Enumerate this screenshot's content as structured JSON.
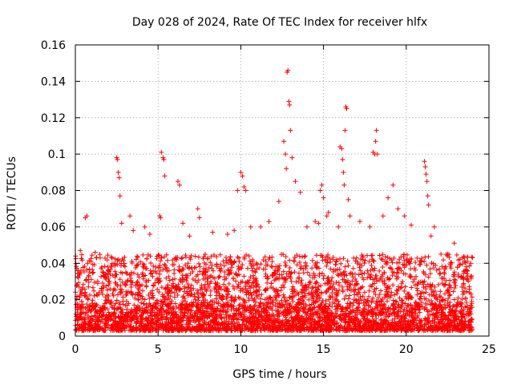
{
  "chart_data": {
    "type": "scatter",
    "title": "Day 028 of 2024, Rate Of TEC Index for receiver hlfx",
    "xlabel": "GPS time / hours",
    "ylabel": "ROTI / TECUs",
    "xlim": [
      0,
      25
    ],
    "ylim": [
      0,
      0.16
    ],
    "x_ticks": [
      0,
      5,
      10,
      15,
      20,
      25
    ],
    "x_tick_labels": [
      "0",
      "5",
      "10",
      "15",
      "20",
      "25"
    ],
    "y_ticks": [
      0,
      0.02,
      0.04,
      0.06,
      0.08,
      0.1,
      0.12,
      0.14,
      0.16
    ],
    "y_tick_labels": [
      "0",
      "0.02",
      "0.04",
      "0.06",
      "0.08",
      "0.1",
      "0.12",
      "0.14",
      "0.16"
    ],
    "grid": true,
    "marker": "+",
    "marker_color": "#ff0000",
    "data_range_hours": [
      0,
      24
    ],
    "background_band": {
      "description": "dense cloud of points spanning the whole day",
      "x": [
        0,
        24
      ],
      "typical_min": 0.003,
      "typical_max": 0.045
    },
    "series": [
      {
        "name": "ROTI",
        "points": [
          [
            0.3,
            0.047
          ],
          [
            0.6,
            0.065
          ],
          [
            0.7,
            0.066
          ],
          [
            1.2,
            0.046
          ],
          [
            1.5,
            0.043
          ],
          [
            2.5,
            0.098
          ],
          [
            2.55,
            0.097
          ],
          [
            2.6,
            0.09
          ],
          [
            2.65,
            0.087
          ],
          [
            2.7,
            0.077
          ],
          [
            2.8,
            0.062
          ],
          [
            3.3,
            0.066
          ],
          [
            3.5,
            0.058
          ],
          [
            4.2,
            0.06
          ],
          [
            4.5,
            0.056
          ],
          [
            5.2,
            0.101
          ],
          [
            5.3,
            0.098
          ],
          [
            5.35,
            0.097
          ],
          [
            5.4,
            0.088
          ],
          [
            5.1,
            0.066
          ],
          [
            5.15,
            0.065
          ],
          [
            6.2,
            0.085
          ],
          [
            6.3,
            0.083
          ],
          [
            6.5,
            0.062
          ],
          [
            6.9,
            0.055
          ],
          [
            7.4,
            0.07
          ],
          [
            7.5,
            0.065
          ],
          [
            8.3,
            0.057
          ],
          [
            9.2,
            0.056
          ],
          [
            9.6,
            0.058
          ],
          [
            9.8,
            0.08
          ],
          [
            10.0,
            0.09
          ],
          [
            10.1,
            0.088
          ],
          [
            10.2,
            0.082
          ],
          [
            10.3,
            0.08
          ],
          [
            10.6,
            0.06
          ],
          [
            11.2,
            0.06
          ],
          [
            11.7,
            0.063
          ],
          [
            12.3,
            0.074
          ],
          [
            12.6,
            0.107
          ],
          [
            12.7,
            0.1
          ],
          [
            12.75,
            0.092
          ],
          [
            12.8,
            0.145
          ],
          [
            12.85,
            0.146
          ],
          [
            12.9,
            0.129
          ],
          [
            12.95,
            0.127
          ],
          [
            13.0,
            0.113
          ],
          [
            13.1,
            0.098
          ],
          [
            13.3,
            0.085
          ],
          [
            13.6,
            0.079
          ],
          [
            14.0,
            0.06
          ],
          [
            14.5,
            0.063
          ],
          [
            14.7,
            0.062
          ],
          [
            14.8,
            0.08
          ],
          [
            14.9,
            0.083
          ],
          [
            15.0,
            0.076
          ],
          [
            15.2,
            0.066
          ],
          [
            15.3,
            0.068
          ],
          [
            15.9,
            0.06
          ],
          [
            16.0,
            0.104
          ],
          [
            16.1,
            0.103
          ],
          [
            16.15,
            0.097
          ],
          [
            16.2,
            0.09
          ],
          [
            16.3,
            0.113
          ],
          [
            16.35,
            0.126
          ],
          [
            16.4,
            0.125
          ],
          [
            16.25,
            0.083
          ],
          [
            16.5,
            0.075
          ],
          [
            16.6,
            0.066
          ],
          [
            17.2,
            0.063
          ],
          [
            17.8,
            0.06
          ],
          [
            18.0,
            0.101
          ],
          [
            18.1,
            0.1
          ],
          [
            18.15,
            0.107
          ],
          [
            18.2,
            0.113
          ],
          [
            18.25,
            0.1
          ],
          [
            18.6,
            0.066
          ],
          [
            18.9,
            0.076
          ],
          [
            19.2,
            0.083
          ],
          [
            19.5,
            0.07
          ],
          [
            19.9,
            0.066
          ],
          [
            20.3,
            0.061
          ],
          [
            21.1,
            0.096
          ],
          [
            21.15,
            0.093
          ],
          [
            21.2,
            0.089
          ],
          [
            21.25,
            0.085
          ],
          [
            21.3,
            0.077
          ],
          [
            21.35,
            0.072
          ],
          [
            21.5,
            0.055
          ],
          [
            21.7,
            0.06
          ],
          [
            22.1,
            0.045
          ],
          [
            22.5,
            0.045
          ],
          [
            22.9,
            0.051
          ],
          [
            23.4,
            0.043
          ],
          [
            23.7,
            0.041
          ],
          [
            23.9,
            0.04
          ]
        ]
      }
    ]
  }
}
